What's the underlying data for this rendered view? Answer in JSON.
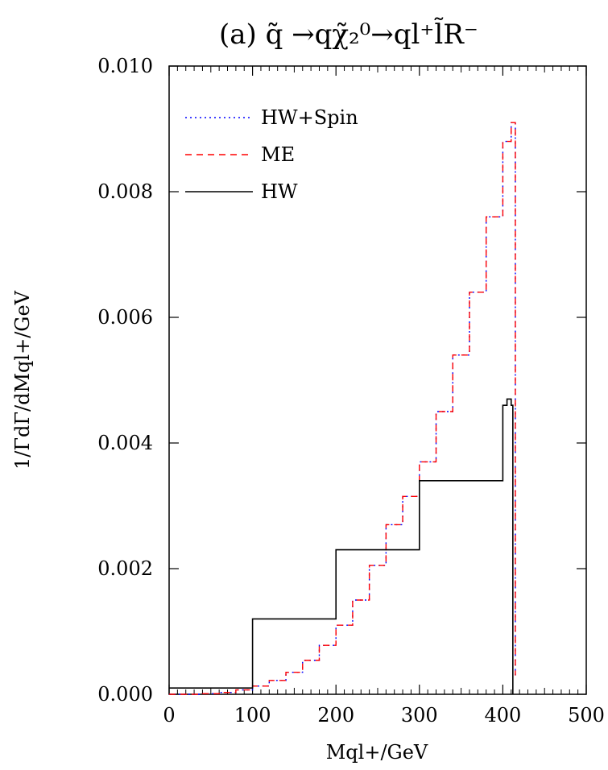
{
  "chart_data": {
    "type": "line",
    "title": "(a)  q̃ →qχ̃₂⁰→ql⁺l̃R⁻",
    "xlabel": "Mql+/GeV",
    "ylabel": "1/ΓdΓ/dMql+/GeV",
    "xlim": [
      0,
      500
    ],
    "ylim": [
      0,
      0.01
    ],
    "xticks": [
      "0",
      "100",
      "200",
      "300",
      "400",
      "500"
    ],
    "yticks": [
      "0.000",
      "0.002",
      "0.004",
      "0.006",
      "0.008",
      "0.010"
    ],
    "grid": false,
    "legend_position": "top-left",
    "series": [
      {
        "name": "HW+Spin",
        "style": "dotted",
        "color": "#0000ff",
        "x": [
          0,
          20,
          40,
          60,
          80,
          100,
          120,
          140,
          160,
          180,
          200,
          220,
          240,
          260,
          280,
          300,
          320,
          340,
          360,
          380,
          400,
          410,
          415
        ],
        "values": [
          0,
          0,
          1e-05,
          3e-05,
          7e-05,
          0.00013,
          0.00022,
          0.00035,
          0.00054,
          0.00078,
          0.0011,
          0.0015,
          0.00205,
          0.0027,
          0.00315,
          0.0037,
          0.0045,
          0.0054,
          0.0064,
          0.0076,
          0.0088,
          0.0091,
          0.0003
        ]
      },
      {
        "name": "ME",
        "style": "dashed",
        "color": "#ff0000",
        "x": [
          0,
          20,
          40,
          60,
          80,
          100,
          120,
          140,
          160,
          180,
          200,
          220,
          240,
          260,
          280,
          300,
          320,
          340,
          360,
          380,
          400,
          410,
          415
        ],
        "values": [
          0,
          0,
          1e-05,
          3e-05,
          7e-05,
          0.00013,
          0.00022,
          0.00035,
          0.00054,
          0.00078,
          0.0011,
          0.0015,
          0.00205,
          0.0027,
          0.00315,
          0.0037,
          0.0045,
          0.0054,
          0.0064,
          0.0076,
          0.0088,
          0.0091,
          0.0003
        ]
      },
      {
        "name": "HW",
        "style": "solid",
        "color": "#000000",
        "x": [
          0,
          100,
          200,
          300,
          400,
          405,
          410,
          412
        ],
        "values": [
          0.0001,
          0.0012,
          0.0023,
          0.0034,
          0.0046,
          0.0047,
          0.0046,
          0
        ]
      }
    ]
  }
}
